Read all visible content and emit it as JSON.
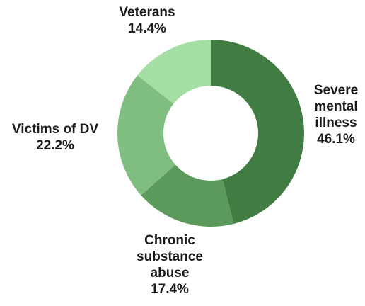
{
  "chart_data": {
    "type": "pie",
    "style": "donut",
    "title": "",
    "slices": [
      {
        "label_lines": [
          "Severe",
          "mental",
          "illness"
        ],
        "percent_label": "46.1%",
        "value": 46.1,
        "color": "#417d42"
      },
      {
        "label_lines": [
          "Chronic",
          "substance",
          "abuse"
        ],
        "percent_label": "17.4%",
        "value": 17.4,
        "color": "#5c9a5c"
      },
      {
        "label_lines": [
          "Victims of DV"
        ],
        "percent_label": "22.2%",
        "value": 22.2,
        "color": "#80bd80"
      },
      {
        "label_lines": [
          "Veterans"
        ],
        "percent_label": "14.4%",
        "value": 14.4,
        "color": "#a4dea3"
      }
    ],
    "legend": "none"
  }
}
